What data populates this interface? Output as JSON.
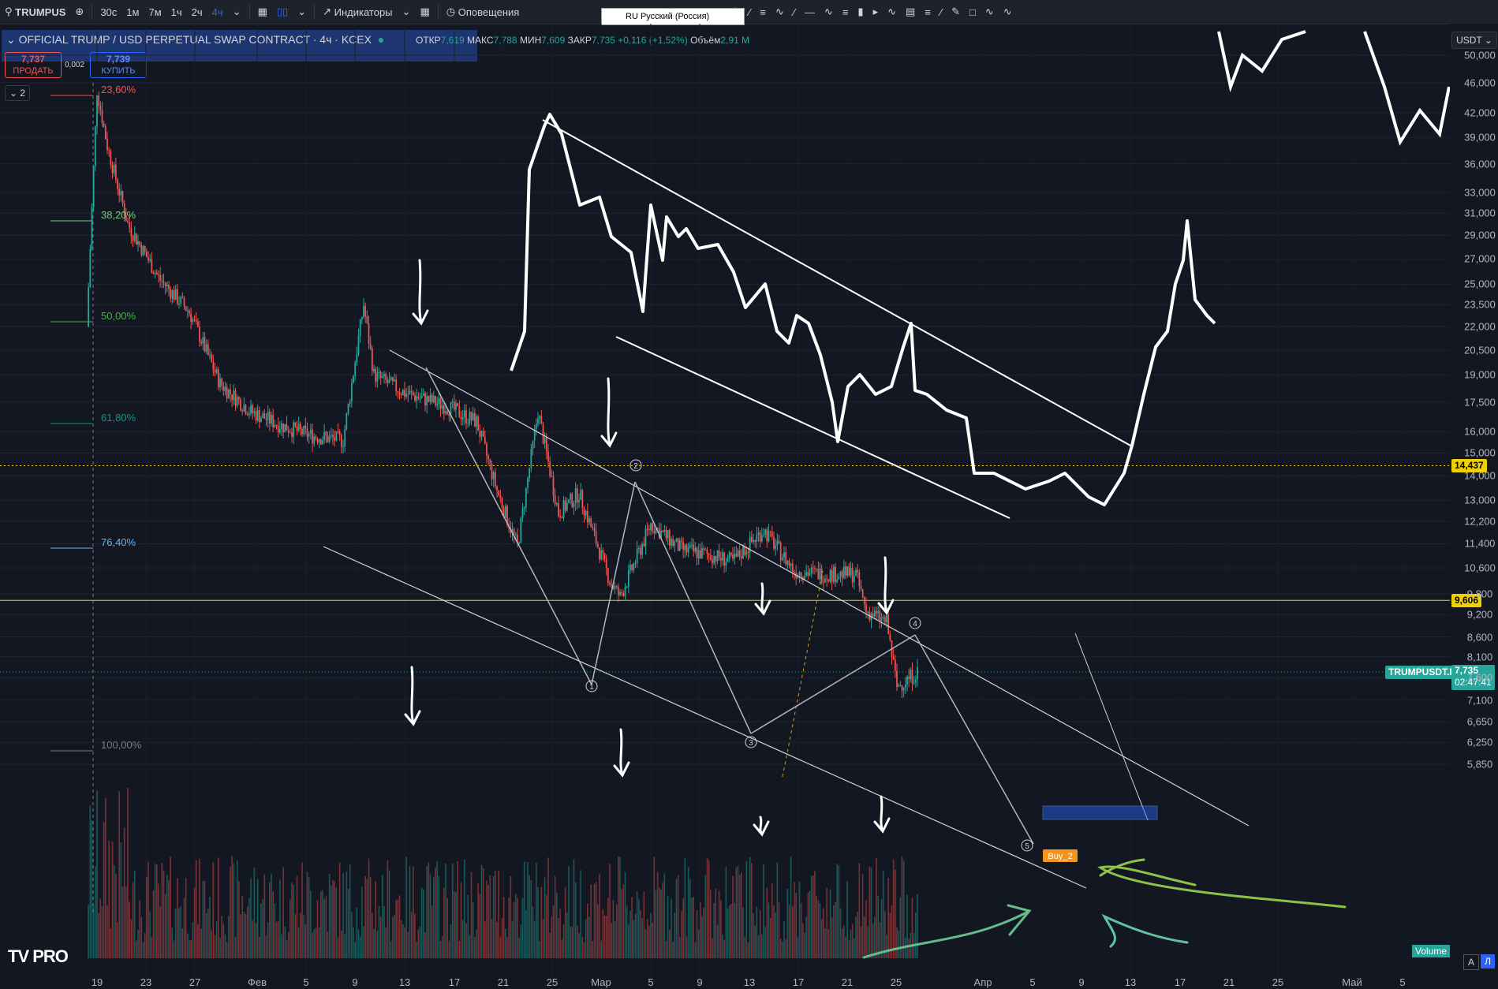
{
  "toolbar": {
    "symbol": "TRUMPUS",
    "intervals": [
      "30с",
      "1м",
      "7м",
      "1ч",
      "2ч",
      "4ч"
    ],
    "active_interval": "4ч",
    "indicators_label": "Индикаторы",
    "alerts_label": "Оповещения",
    "language_popup": "RU Русский (Россия)"
  },
  "legend": {
    "title": "OFFICIAL TRUMP / USD PERPETUAL SWAP CONTRACT · 4ч · KCEX",
    "open_label": "ОТКР",
    "open": "7,619",
    "high_label": "МАКС",
    "high": "7,788",
    "low_label": "МИН",
    "low": "7,609",
    "close_label": "ЗАКР",
    "close": "7,735",
    "change": "+0,116 (+1,52%)",
    "volume_label": "Объём",
    "volume": "2,91 M"
  },
  "trade": {
    "sell_price": "7,737",
    "sell_label": "ПРОДАТЬ",
    "buy_price": "7,739",
    "buy_label": "КУПИТЬ",
    "spread": "0,002",
    "collapse_count": "2"
  },
  "axis": {
    "currency": "USDT",
    "price_labels": [
      "50,000",
      "46,000",
      "42,000",
      "39,000",
      "36,000",
      "33,000",
      "31,000",
      "29,000",
      "27,000",
      "25,000",
      "23,500",
      "22,000",
      "20,500",
      "19,000",
      "17,500",
      "16,000",
      "15,000",
      "14,000",
      "13,000",
      "12,200",
      "11,400",
      "10,600",
      "9,800",
      "9,200",
      "8,600",
      "8,100",
      "7,600",
      "7,100",
      "6,650",
      "6,250",
      "5,850"
    ],
    "time_labels": [
      "19",
      "23",
      "27",
      "Фев",
      "5",
      "9",
      "13",
      "17",
      "21",
      "25",
      "Мар",
      "5",
      "9",
      "13",
      "17",
      "21",
      "25",
      "Апр",
      "5",
      "9",
      "13",
      "17",
      "21",
      "25",
      "Май",
      "5"
    ],
    "hline_labels": [
      "14,437",
      "9,606"
    ],
    "last_symbol": "TRUMPUSDT.P",
    "last_price": "7,735",
    "countdown": "02:47:41",
    "volume_label": "Volume",
    "btn_auto": "A",
    "btn_log": "Л"
  },
  "fib_levels": [
    {
      "label": "23,60%",
      "color": "#ef5350"
    },
    {
      "label": "38,20%",
      "color": "#81c784"
    },
    {
      "label": "50,00%",
      "color": "#4caf50"
    },
    {
      "label": "61,80%",
      "color": "#089981"
    },
    {
      "label": "76,40%",
      "color": "#64b5f6"
    },
    {
      "label": "100,00%",
      "color": "#787b86"
    }
  ],
  "annotations": {
    "wave_labels": [
      "1",
      "2",
      "3",
      "4",
      "5"
    ],
    "signal": "Buy_2",
    "logo": "TV PRO"
  },
  "colors": {
    "up": "#26a69a",
    "down": "#ef5350",
    "background": "#131722",
    "hline": "#f0d000"
  },
  "chart_data": {
    "type": "candlestick",
    "symbol": "TRUMPUSDT.P",
    "exchange": "KCEX",
    "timeframe": "4ч",
    "y_scale": "log",
    "close_path": [
      {
        "x": "Jan 18",
        "close": 22.0
      },
      {
        "x": "Jan 19",
        "close": 45.0
      },
      {
        "x": "Jan 20",
        "close": 38.0
      },
      {
        "x": "Jan 22",
        "close": 30.0
      },
      {
        "x": "Jan 25",
        "close": 25.5
      },
      {
        "x": "Jan 28",
        "close": 23.0
      },
      {
        "x": "Jan 31",
        "close": 18.5
      },
      {
        "x": "Feb 3",
        "close": 17.0
      },
      {
        "x": "Feb 6",
        "close": 16.3
      },
      {
        "x": "Feb 9",
        "close": 15.8
      },
      {
        "x": "Feb 12",
        "close": 15.6
      },
      {
        "x": "Feb 14",
        "close": 23.5
      },
      {
        "x": "Feb 15",
        "close": 19.0
      },
      {
        "x": "Feb 18",
        "close": 18.0
      },
      {
        "x": "Feb 22",
        "close": 17.3
      },
      {
        "x": "Feb 25",
        "close": 16.5
      },
      {
        "x": "Feb 27",
        "close": 13.4
      },
      {
        "x": "Mar 1",
        "close": 11.3
      },
      {
        "x": "Mar 3",
        "close": 17.0
      },
      {
        "x": "Mar 5",
        "close": 12.5
      },
      {
        "x": "Mar 7",
        "close": 13.3
      },
      {
        "x": "Mar 10",
        "close": 10.2
      },
      {
        "x": "Mar 11",
        "close": 9.7
      },
      {
        "x": "Mar 14",
        "close": 12.1
      },
      {
        "x": "Mar 17",
        "close": 11.2
      },
      {
        "x": "Mar 20",
        "close": 11.0
      },
      {
        "x": "Mar 22",
        "close": 10.8
      },
      {
        "x": "Mar 25",
        "close": 11.9
      },
      {
        "x": "Mar 28",
        "close": 10.5
      },
      {
        "x": "Mar 31",
        "close": 10.4
      },
      {
        "x": "Apr 3",
        "close": 10.4
      },
      {
        "x": "Apr 4",
        "close": 9.3
      },
      {
        "x": "Apr 6",
        "close": 9.0
      },
      {
        "x": "Apr 7",
        "close": 7.4
      },
      {
        "x": "Apr 9",
        "close": 7.735
      }
    ],
    "horizontal_lines": [
      14.437,
      9.606
    ],
    "fib_levels": [
      "23,60%",
      "38,20%",
      "50,00%",
      "61,80%",
      "76,40%",
      "100,00%"
    ],
    "last_price": 7.735
  }
}
